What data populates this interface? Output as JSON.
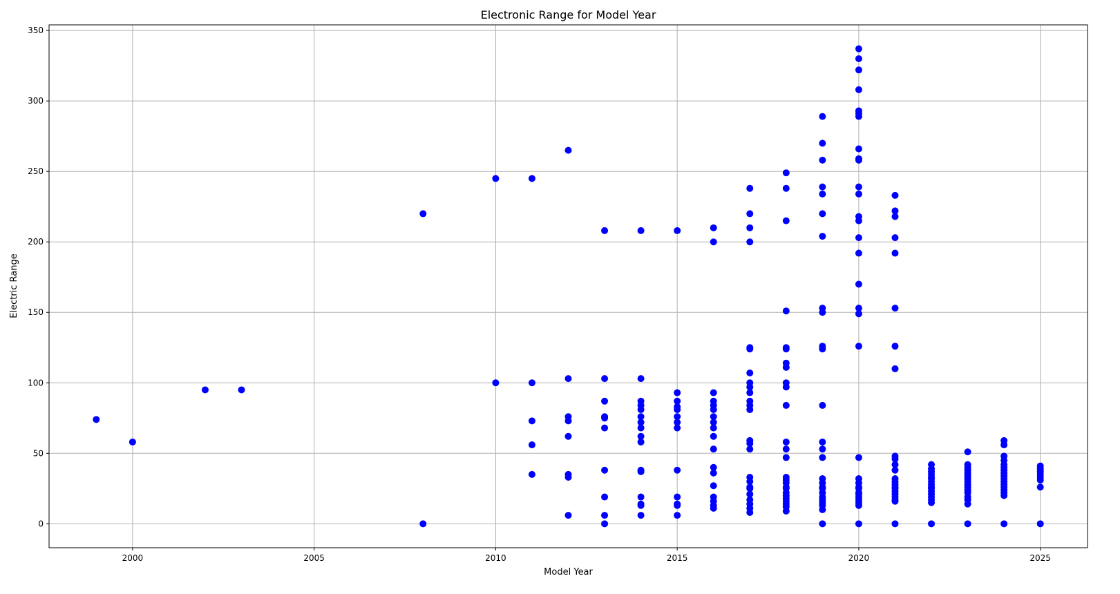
{
  "chart_data": {
    "type": "scatter",
    "title": "Electronic Range for Model Year",
    "xlabel": "Model Year",
    "ylabel": "Electric Range",
    "xlim": [
      1997.7,
      2026.3
    ],
    "ylim": [
      -17,
      354
    ],
    "x_ticks": [
      2000,
      2005,
      2010,
      2015,
      2020,
      2025
    ],
    "y_ticks": [
      0,
      50,
      100,
      150,
      200,
      250,
      300,
      350
    ],
    "grid": true,
    "marker_color": "#0000ff",
    "series": [
      {
        "points": [
          [
            1999,
            74
          ],
          [
            2000,
            58
          ],
          [
            2002,
            95
          ],
          [
            2003,
            95
          ],
          [
            2008,
            220
          ],
          [
            2008,
            0
          ],
          [
            2010,
            245
          ],
          [
            2010,
            100
          ],
          [
            2011,
            245
          ],
          [
            2011,
            100
          ],
          [
            2011,
            73
          ],
          [
            2011,
            56
          ],
          [
            2011,
            35
          ],
          [
            2012,
            265
          ],
          [
            2012,
            103
          ],
          [
            2012,
            76
          ],
          [
            2012,
            73
          ],
          [
            2012,
            62
          ],
          [
            2012,
            35
          ],
          [
            2012,
            33
          ],
          [
            2012,
            6
          ],
          [
            2013,
            208
          ],
          [
            2013,
            103
          ],
          [
            2013,
            87
          ],
          [
            2013,
            76
          ],
          [
            2013,
            75
          ],
          [
            2013,
            68
          ],
          [
            2013,
            38
          ],
          [
            2013,
            19
          ],
          [
            2013,
            6
          ],
          [
            2013,
            0
          ],
          [
            2014,
            208
          ],
          [
            2014,
            103
          ],
          [
            2014,
            87
          ],
          [
            2014,
            84
          ],
          [
            2014,
            81
          ],
          [
            2014,
            76
          ],
          [
            2014,
            72
          ],
          [
            2014,
            68
          ],
          [
            2014,
            62
          ],
          [
            2014,
            58
          ],
          [
            2014,
            38
          ],
          [
            2014,
            37
          ],
          [
            2014,
            19
          ],
          [
            2014,
            14
          ],
          [
            2014,
            13
          ],
          [
            2014,
            6
          ],
          [
            2015,
            208
          ],
          [
            2015,
            93
          ],
          [
            2015,
            87
          ],
          [
            2015,
            83
          ],
          [
            2015,
            81
          ],
          [
            2015,
            76
          ],
          [
            2015,
            72
          ],
          [
            2015,
            68
          ],
          [
            2015,
            38
          ],
          [
            2015,
            19
          ],
          [
            2015,
            14
          ],
          [
            2015,
            13
          ],
          [
            2015,
            6
          ],
          [
            2016,
            210
          ],
          [
            2016,
            200
          ],
          [
            2016,
            93
          ],
          [
            2016,
            87
          ],
          [
            2016,
            84
          ],
          [
            2016,
            81
          ],
          [
            2016,
            76
          ],
          [
            2016,
            72
          ],
          [
            2016,
            68
          ],
          [
            2016,
            62
          ],
          [
            2016,
            53
          ],
          [
            2016,
            40
          ],
          [
            2016,
            36
          ],
          [
            2016,
            27
          ],
          [
            2016,
            19
          ],
          [
            2016,
            16
          ],
          [
            2016,
            13
          ],
          [
            2016,
            11
          ],
          [
            2017,
            238
          ],
          [
            2017,
            220
          ],
          [
            2017,
            210
          ],
          [
            2017,
            200
          ],
          [
            2017,
            125
          ],
          [
            2017,
            124
          ],
          [
            2017,
            107
          ],
          [
            2017,
            100
          ],
          [
            2017,
            97
          ],
          [
            2017,
            93
          ],
          [
            2017,
            87
          ],
          [
            2017,
            84
          ],
          [
            2017,
            81
          ],
          [
            2017,
            59
          ],
          [
            2017,
            57
          ],
          [
            2017,
            53
          ],
          [
            2017,
            33
          ],
          [
            2017,
            30
          ],
          [
            2017,
            26
          ],
          [
            2017,
            25
          ],
          [
            2017,
            21
          ],
          [
            2017,
            17
          ],
          [
            2017,
            14
          ],
          [
            2017,
            11
          ],
          [
            2017,
            8
          ],
          [
            2018,
            249
          ],
          [
            2018,
            238
          ],
          [
            2018,
            215
          ],
          [
            2018,
            151
          ],
          [
            2018,
            125
          ],
          [
            2018,
            124
          ],
          [
            2018,
            114
          ],
          [
            2018,
            111
          ],
          [
            2018,
            100
          ],
          [
            2018,
            97
          ],
          [
            2018,
            84
          ],
          [
            2018,
            58
          ],
          [
            2018,
            53
          ],
          [
            2018,
            47
          ],
          [
            2018,
            33
          ],
          [
            2018,
            31
          ],
          [
            2018,
            29
          ],
          [
            2018,
            26
          ],
          [
            2018,
            25
          ],
          [
            2018,
            22
          ],
          [
            2018,
            20
          ],
          [
            2018,
            18
          ],
          [
            2018,
            16
          ],
          [
            2018,
            14
          ],
          [
            2018,
            12
          ],
          [
            2018,
            9
          ],
          [
            2019,
            289
          ],
          [
            2019,
            270
          ],
          [
            2019,
            258
          ],
          [
            2019,
            239
          ],
          [
            2019,
            234
          ],
          [
            2019,
            220
          ],
          [
            2019,
            204
          ],
          [
            2019,
            153
          ],
          [
            2019,
            150
          ],
          [
            2019,
            126
          ],
          [
            2019,
            124
          ],
          [
            2019,
            84
          ],
          [
            2019,
            58
          ],
          [
            2019,
            53
          ],
          [
            2019,
            47
          ],
          [
            2019,
            32
          ],
          [
            2019,
            29
          ],
          [
            2019,
            26
          ],
          [
            2019,
            25
          ],
          [
            2019,
            22
          ],
          [
            2019,
            19
          ],
          [
            2019,
            17
          ],
          [
            2019,
            15
          ],
          [
            2019,
            13
          ],
          [
            2019,
            10
          ],
          [
            2019,
            0
          ],
          [
            2020,
            337
          ],
          [
            2020,
            330
          ],
          [
            2020,
            322
          ],
          [
            2020,
            308
          ],
          [
            2020,
            293
          ],
          [
            2020,
            291
          ],
          [
            2020,
            289
          ],
          [
            2020,
            266
          ],
          [
            2020,
            259
          ],
          [
            2020,
            258
          ],
          [
            2020,
            239
          ],
          [
            2020,
            234
          ],
          [
            2020,
            218
          ],
          [
            2020,
            215
          ],
          [
            2020,
            203
          ],
          [
            2020,
            192
          ],
          [
            2020,
            170
          ],
          [
            2020,
            153
          ],
          [
            2020,
            149
          ],
          [
            2020,
            126
          ],
          [
            2020,
            47
          ],
          [
            2020,
            32
          ],
          [
            2020,
            29
          ],
          [
            2020,
            26
          ],
          [
            2020,
            25
          ],
          [
            2020,
            22
          ],
          [
            2020,
            21
          ],
          [
            2020,
            19
          ],
          [
            2020,
            17
          ],
          [
            2020,
            15
          ],
          [
            2020,
            13
          ],
          [
            2020,
            0
          ],
          [
            2021,
            233
          ],
          [
            2021,
            222
          ],
          [
            2021,
            218
          ],
          [
            2021,
            203
          ],
          [
            2021,
            192
          ],
          [
            2021,
            153
          ],
          [
            2021,
            126
          ],
          [
            2021,
            110
          ],
          [
            2021,
            48
          ],
          [
            2021,
            46
          ],
          [
            2021,
            42
          ],
          [
            2021,
            38
          ],
          [
            2021,
            32
          ],
          [
            2021,
            30
          ],
          [
            2021,
            28
          ],
          [
            2021,
            26
          ],
          [
            2021,
            25
          ],
          [
            2021,
            23
          ],
          [
            2021,
            21
          ],
          [
            2021,
            19
          ],
          [
            2021,
            17
          ],
          [
            2021,
            16
          ],
          [
            2021,
            0
          ],
          [
            2022,
            42
          ],
          [
            2022,
            39
          ],
          [
            2022,
            37
          ],
          [
            2022,
            35
          ],
          [
            2022,
            33
          ],
          [
            2022,
            32
          ],
          [
            2022,
            30
          ],
          [
            2022,
            28
          ],
          [
            2022,
            26
          ],
          [
            2022,
            25
          ],
          [
            2022,
            23
          ],
          [
            2022,
            21
          ],
          [
            2022,
            19
          ],
          [
            2022,
            17
          ],
          [
            2022,
            15
          ],
          [
            2022,
            0
          ],
          [
            2023,
            51
          ],
          [
            2023,
            42
          ],
          [
            2023,
            40
          ],
          [
            2023,
            38
          ],
          [
            2023,
            36
          ],
          [
            2023,
            34
          ],
          [
            2023,
            32
          ],
          [
            2023,
            30
          ],
          [
            2023,
            28
          ],
          [
            2023,
            26
          ],
          [
            2023,
            24
          ],
          [
            2023,
            22
          ],
          [
            2023,
            19
          ],
          [
            2023,
            17
          ],
          [
            2023,
            14
          ],
          [
            2023,
            0
          ],
          [
            2024,
            59
          ],
          [
            2024,
            56
          ],
          [
            2024,
            48
          ],
          [
            2024,
            45
          ],
          [
            2024,
            42
          ],
          [
            2024,
            40
          ],
          [
            2024,
            38
          ],
          [
            2024,
            36
          ],
          [
            2024,
            34
          ],
          [
            2024,
            32
          ],
          [
            2024,
            30
          ],
          [
            2024,
            28
          ],
          [
            2024,
            26
          ],
          [
            2024,
            24
          ],
          [
            2024,
            22
          ],
          [
            2024,
            20
          ],
          [
            2024,
            0
          ],
          [
            2025,
            41
          ],
          [
            2025,
            39
          ],
          [
            2025,
            37
          ],
          [
            2025,
            35
          ],
          [
            2025,
            33
          ],
          [
            2025,
            31
          ],
          [
            2025,
            26
          ],
          [
            2025,
            0
          ]
        ]
      }
    ]
  }
}
